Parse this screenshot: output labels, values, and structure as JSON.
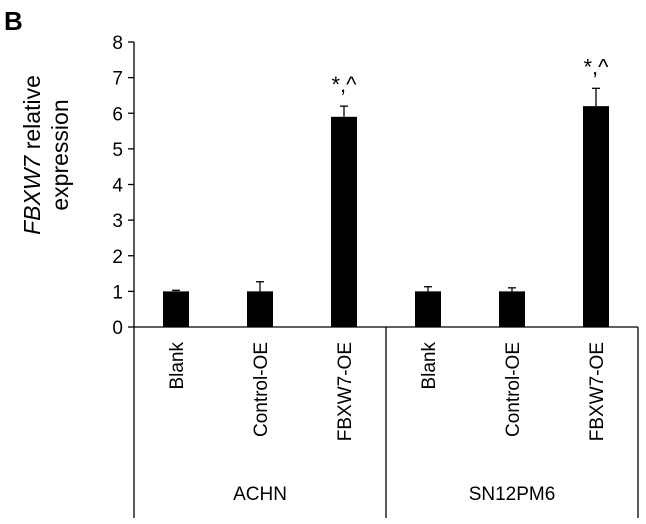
{
  "panel_label": "B",
  "chart_data": {
    "type": "bar",
    "ylabel_gene": "FBXW7",
    "ylabel_rest": " relative",
    "ylabel_line2": "expression",
    "ylim": [
      0,
      8
    ],
    "yticks": [
      0,
      1,
      2,
      3,
      4,
      5,
      6,
      7,
      8
    ],
    "categories": [
      "Blank",
      "Control-OE",
      "FBXW7-OE",
      "Blank",
      "Control-OE",
      "FBXW7-OE"
    ],
    "groups": [
      {
        "name": "ACHN",
        "categories": [
          "Blank",
          "Control-OE",
          "FBXW7-OE"
        ]
      },
      {
        "name": "SN12PM6",
        "categories": [
          "Blank",
          "Control-OE",
          "FBXW7-OE"
        ]
      }
    ],
    "values": [
      1.0,
      1.0,
      5.9,
      1.0,
      1.0,
      6.2
    ],
    "errors": [
      0.03,
      0.27,
      0.3,
      0.13,
      0.1,
      0.5
    ],
    "annotations": [
      "",
      "",
      "*,^",
      "",
      "",
      "*,^"
    ],
    "bar_color": "#000000",
    "grid": false
  }
}
